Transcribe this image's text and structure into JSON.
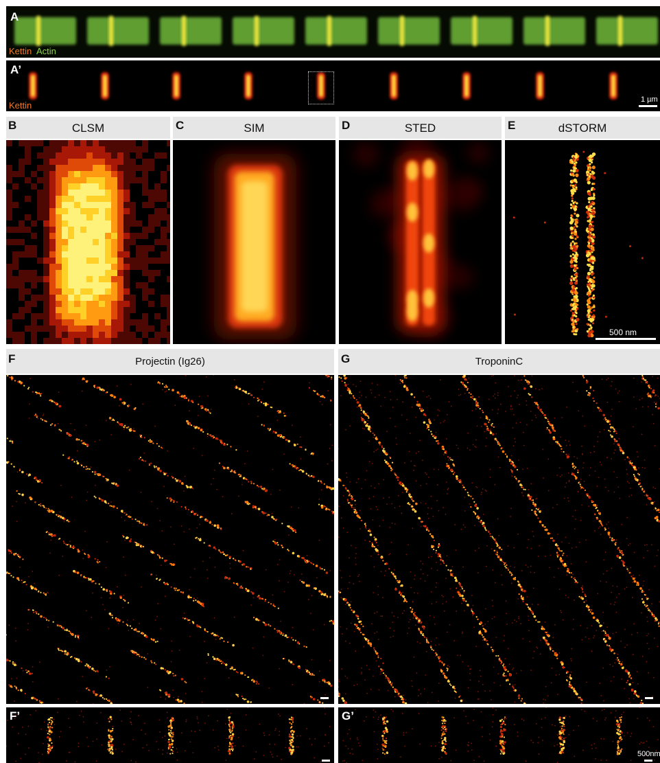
{
  "panel_a": {
    "letter": "A",
    "label_kettin": "Kettin",
    "label_actin": "Actin"
  },
  "panel_a_prime": {
    "letter": "A’",
    "label": "Kettin",
    "scalebar": "1 µm"
  },
  "panel_b": {
    "letter": "B",
    "title": "CLSM"
  },
  "panel_c": {
    "letter": "C",
    "title": "SIM"
  },
  "panel_d": {
    "letter": "D",
    "title": "STED"
  },
  "panel_e": {
    "letter": "E",
    "title": "dSTORM",
    "scalebar": "500 nm"
  },
  "panel_f": {
    "letter": "F",
    "title": "Projectin (Ig26)"
  },
  "panel_g": {
    "letter": "G",
    "title": "TroponinC"
  },
  "panel_f_prime": {
    "letter": "F’"
  },
  "panel_g_prime": {
    "letter": "G’",
    "scalebar": "500nm"
  },
  "colors": {
    "kettin": "#f07a2a",
    "actin": "#8fd24a",
    "hot": "#ffb000"
  }
}
